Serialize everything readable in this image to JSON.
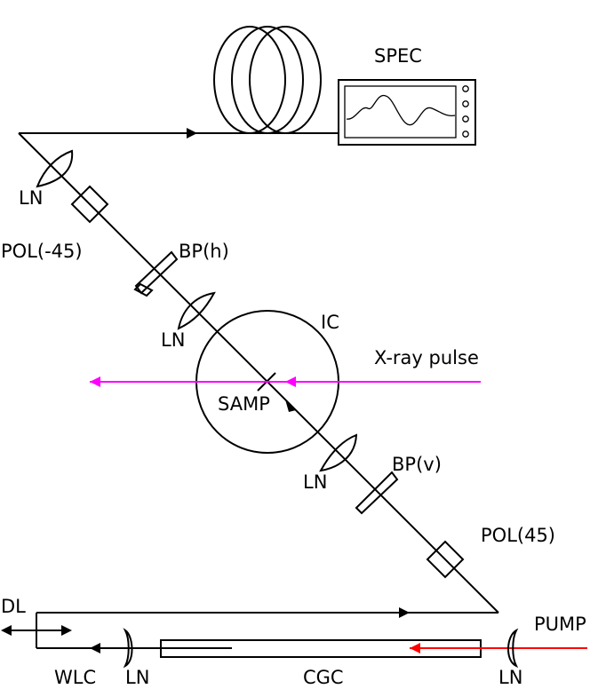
{
  "labels": {
    "spec": "SPEC",
    "ln_top": "LN",
    "pol_neg45": "POL(-45)",
    "bp_h": "BP(h)",
    "ln_upper": "LN",
    "ic": "IC",
    "xray_pulse": "X-ray pulse",
    "samp": "SAMP",
    "ln_lower": "LN",
    "bp_v": "BP(v)",
    "pol_45": "POL(45)",
    "dl": "DL",
    "pump": "PUMP",
    "wlc": "WLC",
    "ln_wlc": "LN",
    "cgc": "CGC",
    "ln_pump": "LN"
  },
  "colors": {
    "xray": "#ff00ff",
    "pump": "#ff0000",
    "line": "#000000"
  }
}
